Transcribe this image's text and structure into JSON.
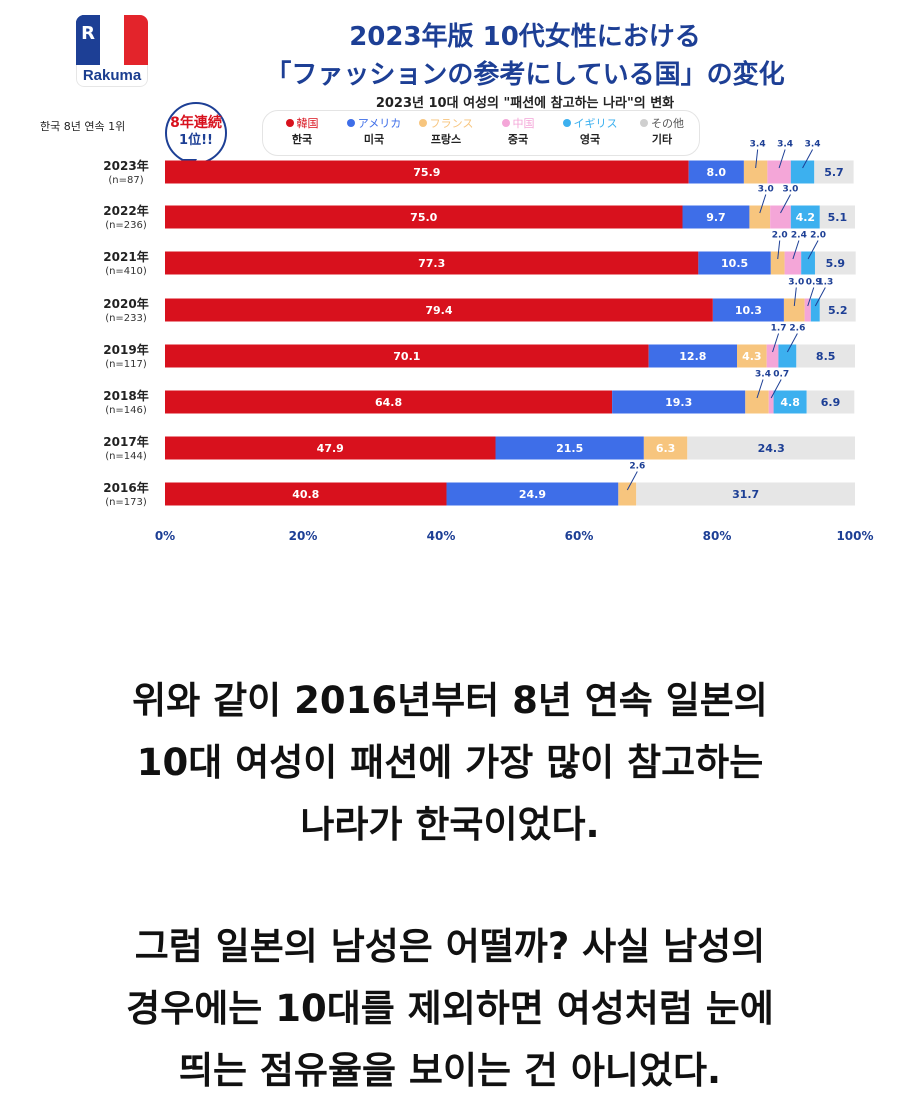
{
  "brand": {
    "name": "Rakuma",
    "logo_letter": "R",
    "flag_colors": [
      "#1d3f95",
      "#ffffff",
      "#e3242b"
    ]
  },
  "header": {
    "title_line1": "2023年版 10代女性における",
    "title_line2": "「ファッションの参考にしている国」の変化",
    "subtitle": "2023년 10대 여성의 \"패션에 참고하는 나라\"의 변화"
  },
  "annotations": {
    "streak_label": "한국 8년 연속 1위",
    "badge_line1": "8年連続",
    "badge_line2": "1位!!"
  },
  "legend": [
    {
      "jp": "韓国",
      "kr": "한국",
      "color": "#d8111d"
    },
    {
      "jp": "アメリカ",
      "kr": "미국",
      "color": "#3e6ee8"
    },
    {
      "jp": "フランス",
      "kr": "프랑스",
      "color": "#f7c57e"
    },
    {
      "jp": "中国",
      "kr": "중국",
      "color": "#f4a6d8"
    },
    {
      "jp": "イギリス",
      "kr": "영국",
      "color": "#3cb0ef"
    },
    {
      "jp": "その他",
      "kr": "기타",
      "color": "#e6e6e6"
    }
  ],
  "chart_data": {
    "type": "bar",
    "orientation": "horizontal",
    "stacked": true,
    "title": "2023年版 10代女性における「ファッションの参考にしている国」の変化",
    "subtitle": "2023년 10대 여성의 \"패션에 참고하는 나라\"의 변화",
    "categories": [
      "2023年",
      "2022年",
      "2021年",
      "2020年",
      "2019年",
      "2018年",
      "2017年",
      "2016年"
    ],
    "sample_sizes": [
      "(n=87)",
      "(n=236)",
      "(n=410)",
      "(n=233)",
      "(n=117)",
      "(n=146)",
      "(n=144)",
      "(n=173)"
    ],
    "xlim": [
      0,
      100
    ],
    "x_ticks": [
      "0%",
      "20%",
      "40%",
      "60%",
      "80%",
      "100%"
    ],
    "value_suffix": "%",
    "legend_position": "top",
    "grid": false,
    "series": [
      {
        "name": "韓国",
        "color": "#d8111d",
        "values": [
          75.9,
          75.0,
          77.3,
          79.4,
          70.1,
          64.8,
          47.9,
          40.8
        ]
      },
      {
        "name": "アメリカ",
        "color": "#3e6ee8",
        "values": [
          8.0,
          9.7,
          10.5,
          10.3,
          12.8,
          19.3,
          21.5,
          24.9
        ]
      },
      {
        "name": "フランス",
        "color": "#f7c57e",
        "values": [
          3.4,
          3.0,
          2.0,
          3.0,
          4.3,
          3.4,
          6.3,
          2.6
        ]
      },
      {
        "name": "中国",
        "color": "#f4a6d8",
        "values": [
          3.4,
          3.0,
          2.4,
          0.9,
          1.7,
          0.7,
          0,
          0
        ]
      },
      {
        "name": "イギリス",
        "color": "#3cb0ef",
        "values": [
          3.4,
          4.2,
          2.0,
          1.3,
          2.6,
          4.8,
          0,
          0
        ]
      },
      {
        "name": "その他",
        "color": "#e6e6e6",
        "values": [
          5.7,
          5.1,
          5.9,
          5.2,
          8.5,
          6.9,
          24.3,
          31.7
        ]
      }
    ]
  },
  "body": {
    "paragraph1": [
      "위와 같이 2016년부터 8년 연속 일본의",
      "10대 여성이 패션에 가장 많이 참고하는",
      "나라가 한국이었다."
    ],
    "paragraph2": [
      "그럼 일본의 남성은 어떨까? 사실 남성의",
      "경우에는 10대를 제외하면 여성처럼 눈에",
      "띄는 점유율을 보이는 건 아니었다."
    ]
  }
}
